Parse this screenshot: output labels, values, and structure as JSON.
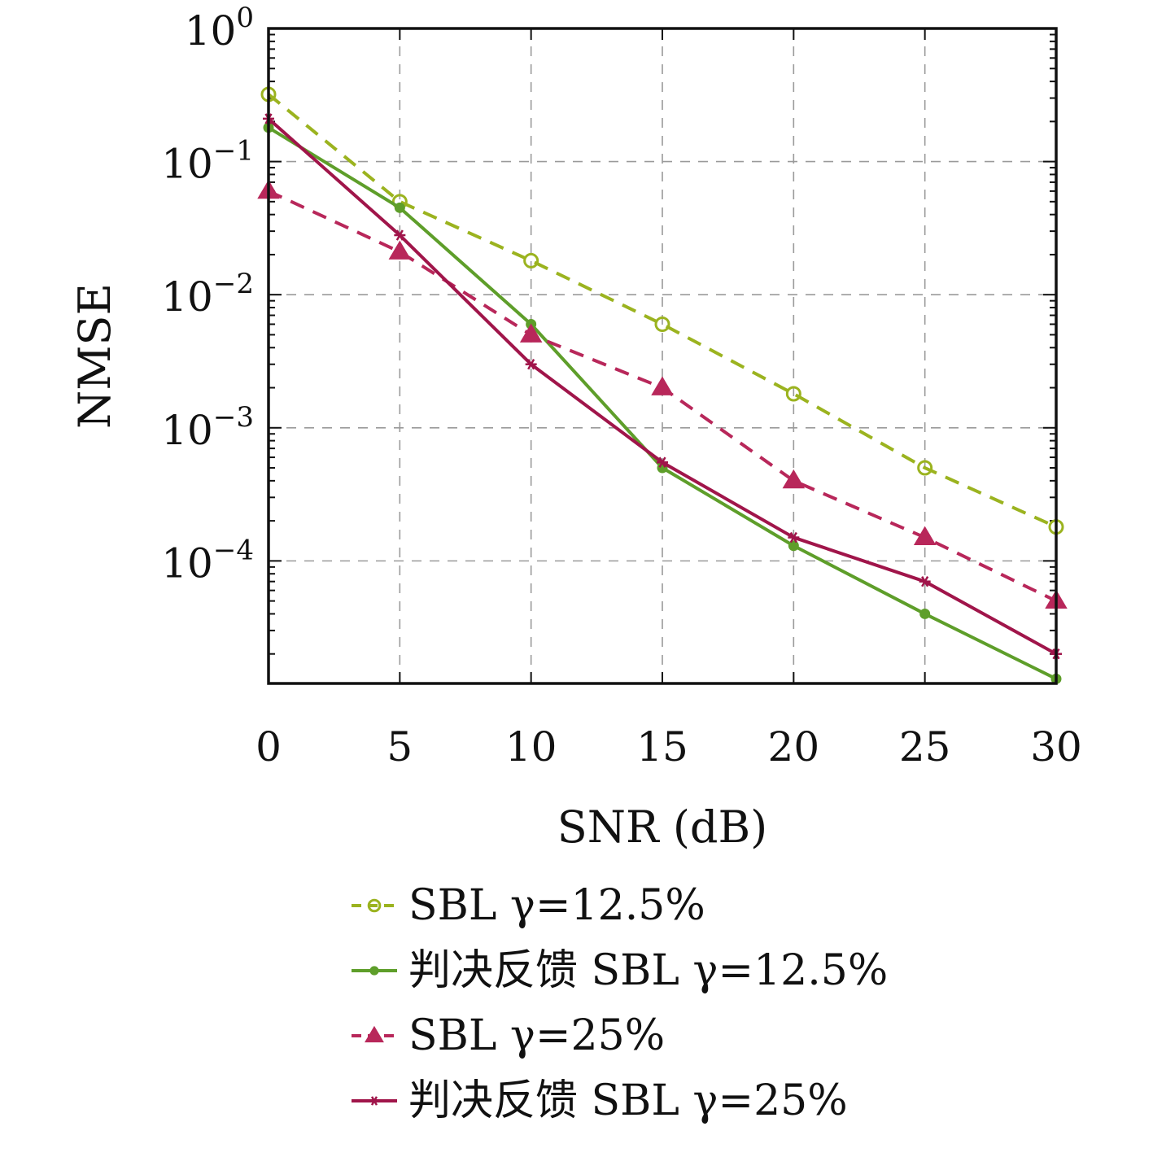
{
  "chart_data": {
    "type": "line",
    "xlabel": "SNR (dB)",
    "ylabel": "NMSE",
    "yscale": "log",
    "xlim": [
      0,
      30
    ],
    "ylim": [
      1.2e-05,
      1
    ],
    "grid": true,
    "legend_position": "below",
    "x": [
      0,
      5,
      10,
      15,
      20,
      25,
      30
    ],
    "x_ticks": [
      "0",
      "5",
      "10",
      "15",
      "20",
      "25",
      "30"
    ],
    "y_ticks": [
      {
        "value": 1,
        "base": "10",
        "exp": "0"
      },
      {
        "value": 0.1,
        "base": "10",
        "exp": "−1"
      },
      {
        "value": 0.01,
        "base": "10",
        "exp": "−2"
      },
      {
        "value": 0.001,
        "base": "10",
        "exp": "−3"
      },
      {
        "value": 0.0001,
        "base": "10",
        "exp": "−4"
      }
    ],
    "series": [
      {
        "name": "SBL γ=12.5%",
        "color": "#9bb31f",
        "line_style": "dashed",
        "marker": "circle",
        "values": [
          0.32,
          0.05,
          0.018,
          0.006,
          0.0018,
          0.0005,
          0.00018
        ]
      },
      {
        "name": "判决反馈 SBL γ=12.5%",
        "color": "#5e9e2a",
        "line_style": "solid",
        "marker": "dot",
        "values": [
          0.18,
          0.045,
          0.006,
          0.0005,
          0.00013,
          4e-05,
          1.3e-05
        ]
      },
      {
        "name": "SBL γ=25%",
        "color": "#b8275a",
        "line_style": "dashed",
        "marker": "triangle",
        "values": [
          0.06,
          0.021,
          0.005,
          0.002,
          0.0004,
          0.00015,
          5e-05
        ]
      },
      {
        "name": "判决反馈 SBL γ=25%",
        "color": "#a0154a",
        "line_style": "solid",
        "marker": "star",
        "values": [
          0.21,
          0.028,
          0.003,
          0.00055,
          0.00015,
          7e-05,
          2e-05
        ]
      }
    ]
  }
}
